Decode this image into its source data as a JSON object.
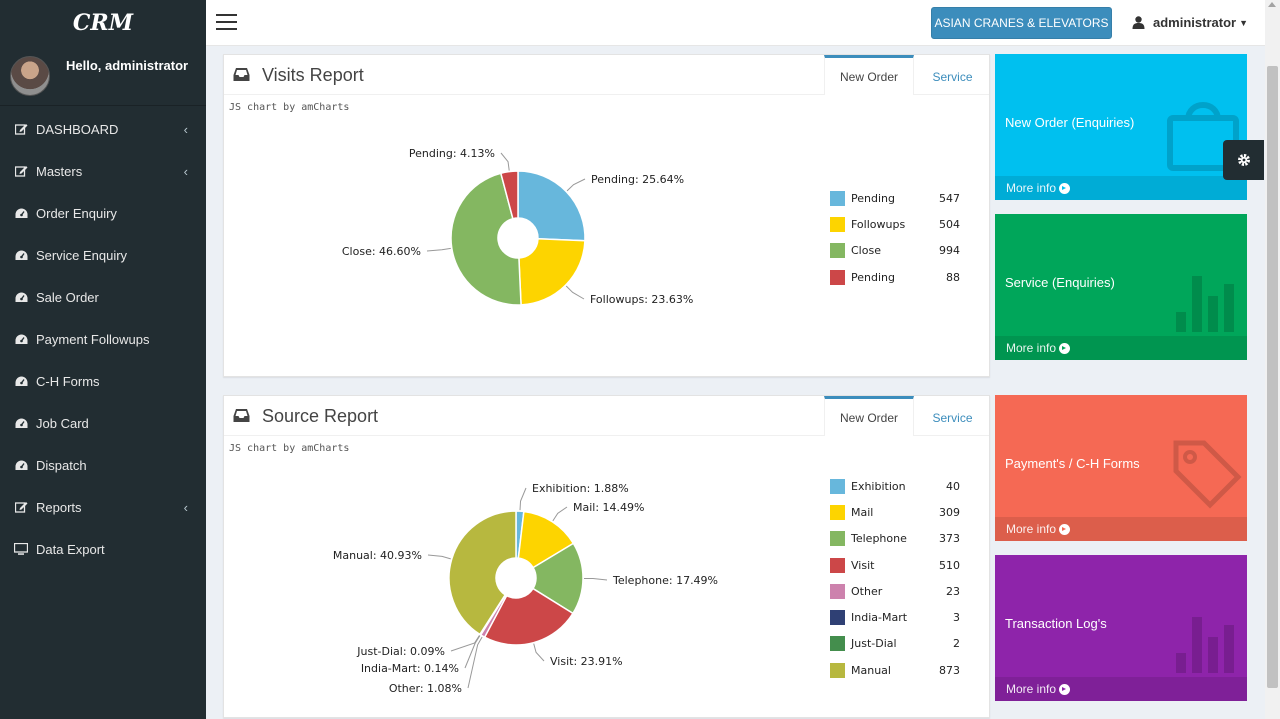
{
  "app": {
    "logo": "CRM"
  },
  "user": {
    "greeting": "Hello, administrator",
    "name": "administrator"
  },
  "sidebar": {
    "items": [
      {
        "label": "DASHBOARD",
        "icon": "edit-icon",
        "has_children": true
      },
      {
        "label": "Masters",
        "icon": "edit-icon",
        "has_children": true
      },
      {
        "label": "Order Enquiry",
        "icon": "dashboard-icon",
        "has_children": false
      },
      {
        "label": "Service Enquiry",
        "icon": "dashboard-icon",
        "has_children": false
      },
      {
        "label": "Sale Order",
        "icon": "dashboard-icon",
        "has_children": false
      },
      {
        "label": "Payment Followups",
        "icon": "dashboard-icon",
        "has_children": false
      },
      {
        "label": "C-H Forms",
        "icon": "dashboard-icon",
        "has_children": false
      },
      {
        "label": "Job Card",
        "icon": "dashboard-icon",
        "has_children": false
      },
      {
        "label": "Dispatch",
        "icon": "dashboard-icon",
        "has_children": false
      },
      {
        "label": "Reports",
        "icon": "edit-icon",
        "has_children": true
      },
      {
        "label": "Data Export",
        "icon": "desktop-icon",
        "has_children": false
      }
    ]
  },
  "topbar": {
    "company_button": "ASIAN CRANES & ELEVATORS"
  },
  "visits": {
    "title": "Visits Report",
    "tabs": [
      "New Order",
      "Service"
    ],
    "credit": "JS chart by amCharts",
    "legend": [
      {
        "name": "Pending",
        "value": "547",
        "color": "#67b7dc"
      },
      {
        "name": "Followups",
        "value": "504",
        "color": "#fdd400"
      },
      {
        "name": "Close",
        "value": "994",
        "color": "#84b761"
      },
      {
        "name": "Pending",
        "value": "88",
        "color": "#cc4748"
      }
    ],
    "labels": [
      "Pending: 25.64%",
      "Followups: 23.63%",
      "Close: 46.60%",
      "Pending: 4.13%"
    ]
  },
  "source": {
    "title": "Source Report",
    "tabs": [
      "New Order",
      "Service"
    ],
    "credit": "JS chart by amCharts",
    "legend": [
      {
        "name": "Exhibition",
        "value": "40",
        "color": "#67b7dc"
      },
      {
        "name": "Mail",
        "value": "309",
        "color": "#fdd400"
      },
      {
        "name": "Telephone",
        "value": "373",
        "color": "#84b761"
      },
      {
        "name": "Visit",
        "value": "510",
        "color": "#cc4748"
      },
      {
        "name": "Other",
        "value": "23",
        "color": "#cd82ad"
      },
      {
        "name": "India-Mart",
        "value": "3",
        "color": "#2f4074"
      },
      {
        "name": "Just-Dial",
        "value": "2",
        "color": "#448e4d"
      },
      {
        "name": "Manual",
        "value": "873",
        "color": "#b7b83f"
      }
    ],
    "labels": [
      "Exhibition: 1.88%",
      "Mail: 14.49%",
      "Telephone: 17.49%",
      "Visit: 23.91%",
      "Other: 1.08%",
      "India-Mart: 0.14%",
      "Just-Dial: 0.09%",
      "Manual: 40.93%"
    ]
  },
  "chart_data": [
    {
      "type": "pie",
      "title": "Visits Report",
      "categories": [
        "Pending",
        "Followups",
        "Close",
        "Pending"
      ],
      "values": [
        547,
        504,
        994,
        88
      ],
      "percents": [
        25.64,
        23.63,
        46.6,
        4.13
      ],
      "colors": [
        "#67b7dc",
        "#fdd400",
        "#84b761",
        "#cc4748"
      ],
      "legend": "right"
    },
    {
      "type": "pie",
      "title": "Source Report",
      "categories": [
        "Exhibition",
        "Mail",
        "Telephone",
        "Visit",
        "Other",
        "India-Mart",
        "Just-Dial",
        "Manual"
      ],
      "values": [
        40,
        309,
        373,
        510,
        23,
        3,
        2,
        873
      ],
      "percents": [
        1.88,
        14.49,
        17.49,
        23.91,
        1.08,
        0.14,
        0.09,
        40.93
      ],
      "colors": [
        "#67b7dc",
        "#fdd400",
        "#84b761",
        "#cc4748",
        "#cd82ad",
        "#2f4074",
        "#448e4d",
        "#b7b83f"
      ],
      "legend": "right"
    }
  ],
  "tiles": [
    {
      "title": "New Order (Enquiries)",
      "more": "More info",
      "icon": "shopping-bag-icon",
      "color": "#00c0ef"
    },
    {
      "title": "Service (Enquiries)",
      "more": "More info",
      "icon": "bar-chart-icon",
      "color": "#00a65a"
    },
    {
      "title": "Payment's / C-H Forms",
      "more": "More info",
      "icon": "tag-icon",
      "color": "#f56954"
    },
    {
      "title": "Transaction Log's",
      "more": "More info",
      "icon": "bar-chart-icon",
      "color": "#8e24aa"
    }
  ]
}
